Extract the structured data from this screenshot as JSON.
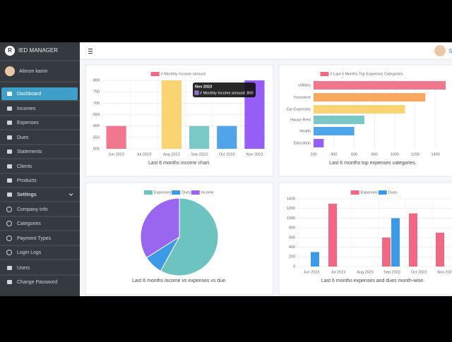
{
  "sidebar": {
    "brand": "IED MANAGER",
    "user": "Alimon karim",
    "menu": [
      "Dashboard",
      "Incomes",
      "Expenses",
      "Dues",
      "Statements",
      "Clients",
      "Products",
      "Settings",
      "Company Info",
      "Categories",
      "Payment Types",
      "Login Logs",
      "Users",
      "Change Password"
    ]
  },
  "header": {
    "user_initial": "S"
  },
  "chart_data": [
    {
      "type": "bar",
      "legend": "# Monthly Income amount",
      "categories": [
        "Jun 2023",
        "Jul 2023",
        "Aug 2023",
        "Sep 2023",
        "Oct 2023",
        "Nov 2023"
      ],
      "values": [
        600,
        500,
        800,
        600,
        600,
        800
      ],
      "colors": [
        "#f06883",
        "#f7a050",
        "#f9cf64",
        "#6cc3c0",
        "#3d9ae6",
        "#8c4cf5"
      ],
      "ylim": [
        500,
        800
      ],
      "yticks": [
        500,
        550,
        600,
        650,
        700,
        750,
        800
      ],
      "grid": true,
      "caption": "Last 6 months income chart.",
      "tooltip": {
        "title": "Nov 2023",
        "text": "# Monthly Income amount: 800"
      }
    },
    {
      "type": "barh",
      "legend": "# Last 6 Months Top Expenses Categories",
      "categories": [
        "Utilities",
        "Insurance",
        "Car Expenses",
        "House Rent",
        "Health",
        "Education"
      ],
      "values": [
        1500,
        1300,
        1100,
        700,
        600,
        300
      ],
      "colors": [
        "#f06883",
        "#f7a050",
        "#f9cf64",
        "#6cc3c0",
        "#3d9ae6",
        "#8c4cf5"
      ],
      "xlim": [
        200,
        1500
      ],
      "xticks": [
        200,
        400,
        600,
        800,
        1000,
        1200,
        1400
      ],
      "grid": true,
      "caption": "Last 6 months top expenses categories."
    },
    {
      "type": "pie",
      "categories": [
        "Expenses",
        "Dues",
        "Income"
      ],
      "values": [
        58,
        8,
        34
      ],
      "colors": [
        "#6cc3c0",
        "#3d9ae6",
        "#9a66f0"
      ],
      "caption": "Last 6 months income vs expenses vs due."
    },
    {
      "type": "bar",
      "categories": [
        "Jun 2023",
        "Jul 2023",
        "Aug 2023",
        "Sep 2023",
        "Oct 2023",
        "Nov 2023"
      ],
      "series": [
        {
          "name": "Expenses",
          "color": "#f06883",
          "values": [
            0,
            1300,
            0,
            600,
            1100,
            700
          ]
        },
        {
          "name": "Dues",
          "color": "#3d9ae6",
          "values": [
            300,
            0,
            0,
            1000,
            0,
            0
          ]
        }
      ],
      "ylim": [
        0,
        1400
      ],
      "yticks": [
        0,
        200,
        400,
        600,
        800,
        1000,
        1200,
        1400
      ],
      "grid": true,
      "caption": "Last 6 months expenses and dues month-wise."
    }
  ]
}
